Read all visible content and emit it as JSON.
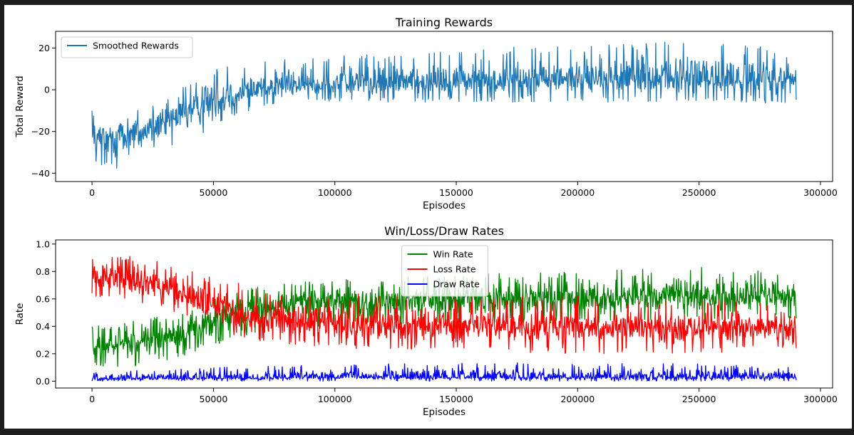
{
  "chart_data": [
    {
      "type": "line",
      "title": "Training Rewards",
      "xlabel": "Episodes",
      "ylabel": "Total Reward",
      "xlim": [
        -15000,
        305000
      ],
      "ylim": [
        -44,
        28
      ],
      "x_ticks": [
        0,
        50000,
        100000,
        150000,
        200000,
        250000,
        300000
      ],
      "x_tick_labels": [
        "0",
        "50000",
        "100000",
        "150000",
        "200000",
        "250000",
        "300000"
      ],
      "y_ticks": [
        -40,
        -20,
        0,
        20
      ],
      "y_tick_labels": [
        "−40",
        "−20",
        "0",
        "20"
      ],
      "grid": false,
      "legend_position": "upper-left",
      "series": [
        {
          "name": "Smoothed Rewards",
          "color": "#1f77b4",
          "x_range": [
            0,
            290000
          ],
          "trend": {
            "x": [
              0,
              10000,
              20000,
              30000,
              40000,
              50000,
              60000,
              70000,
              80000,
              100000,
              150000,
              200000,
              250000,
              290000
            ],
            "mean": [
              -24,
              -22,
              -20,
              -16,
              -10,
              -5,
              -1,
              1,
              2,
              3,
              4,
              5,
              5,
              5
            ],
            "min": [
              -37,
              -38,
              -36,
              -31,
              -25,
              -19,
              -12,
              -8,
              -7,
              -6,
              -6,
              -6,
              -6,
              -7
            ],
            "max": [
              -10,
              -10,
              -8,
              -4,
              4,
              10,
              12,
              14,
              15,
              17,
              20,
              21,
              25,
              18
            ]
          }
        }
      ]
    },
    {
      "type": "line",
      "title": "Win/Loss/Draw Rates",
      "xlabel": "Episodes",
      "ylabel": "Rate",
      "xlim": [
        -15000,
        305000
      ],
      "ylim": [
        -0.05,
        1.03
      ],
      "x_ticks": [
        0,
        50000,
        100000,
        150000,
        200000,
        250000,
        300000
      ],
      "x_tick_labels": [
        "0",
        "50000",
        "100000",
        "150000",
        "200000",
        "250000",
        "300000"
      ],
      "y_ticks": [
        0.0,
        0.2,
        0.4,
        0.6,
        0.8,
        1.0
      ],
      "y_tick_labels": [
        "0.0",
        "0.2",
        "0.4",
        "0.6",
        "0.8",
        "1.0"
      ],
      "grid": false,
      "legend_position": "upper-center",
      "series": [
        {
          "name": "Win Rate",
          "color": "#008000",
          "x_range": [
            0,
            290000
          ],
          "trend": {
            "x": [
              0,
              10000,
              20000,
              30000,
              40000,
              50000,
              60000,
              80000,
              100000,
              150000,
              200000,
              250000,
              290000
            ],
            "mean": [
              0.25,
              0.27,
              0.29,
              0.33,
              0.38,
              0.44,
              0.52,
              0.56,
              0.58,
              0.6,
              0.61,
              0.62,
              0.62
            ],
            "min": [
              0.1,
              0.1,
              0.11,
              0.14,
              0.2,
              0.26,
              0.32,
              0.37,
              0.39,
              0.42,
              0.42,
              0.43,
              0.44
            ],
            "max": [
              0.4,
              0.42,
              0.45,
              0.48,
              0.53,
              0.6,
              0.68,
              0.72,
              0.74,
              0.78,
              0.8,
              0.83,
              0.8
            ]
          }
        },
        {
          "name": "Loss Rate",
          "color": "#ff0000",
          "x_range": [
            0,
            290000
          ],
          "trend": {
            "x": [
              0,
              10000,
              20000,
              30000,
              40000,
              50000,
              60000,
              80000,
              100000,
              150000,
              200000,
              250000,
              290000
            ],
            "mean": [
              0.76,
              0.75,
              0.72,
              0.68,
              0.62,
              0.55,
              0.48,
              0.44,
              0.42,
              0.4,
              0.39,
              0.38,
              0.38
            ],
            "min": [
              0.62,
              0.58,
              0.56,
              0.52,
              0.46,
              0.38,
              0.3,
              0.26,
              0.24,
              0.22,
              0.2,
              0.2,
              0.24
            ],
            "max": [
              1.0,
              0.92,
              0.92,
              0.88,
              0.82,
              0.75,
              0.72,
              0.66,
              0.64,
              0.62,
              0.62,
              0.6,
              0.6
            ]
          }
        },
        {
          "name": "Draw Rate",
          "color": "#0000ff",
          "x_range": [
            0,
            290000
          ],
          "trend": {
            "x": [
              0,
              50000,
              100000,
              150000,
              200000,
              250000,
              290000
            ],
            "mean": [
              0.02,
              0.02,
              0.03,
              0.03,
              0.03,
              0.03,
              0.03
            ],
            "min": [
              0.0,
              0.0,
              0.0,
              0.0,
              0.0,
              0.0,
              0.0
            ],
            "max": [
              0.07,
              0.1,
              0.12,
              0.14,
              0.13,
              0.13,
              0.1
            ]
          }
        }
      ]
    }
  ]
}
